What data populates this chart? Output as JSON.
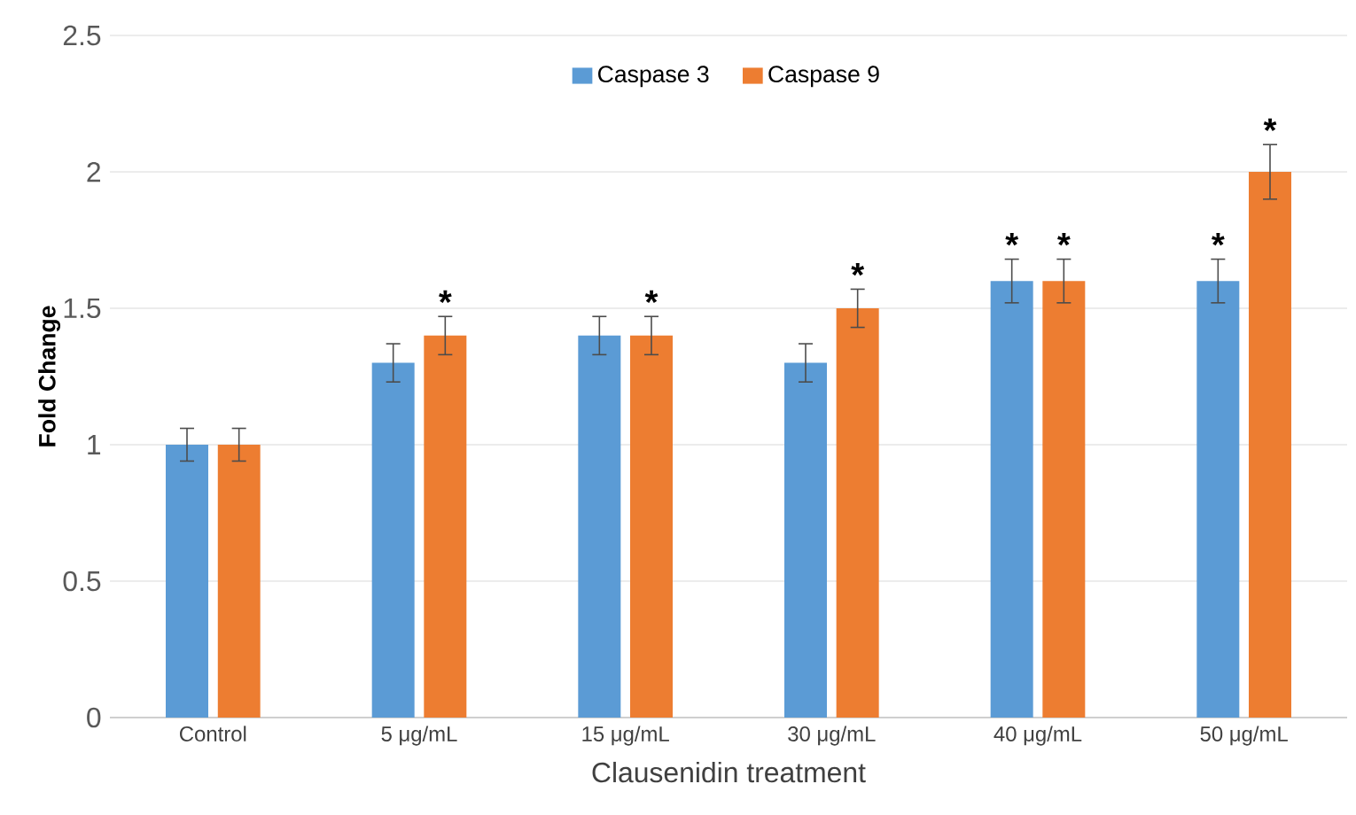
{
  "chart_data": {
    "type": "bar",
    "xlabel": "Clausenidin treatment",
    "ylabel": "Fold Change",
    "categories": [
      "Control",
      "5 μg/mL",
      "15 μg/mL",
      "30 μg/mL",
      "40 μg/mL",
      "50 μg/mL"
    ],
    "series": [
      {
        "name": "Caspase 3",
        "color": "#5b9bd5",
        "values": [
          1.0,
          1.3,
          1.4,
          1.3,
          1.6,
          1.6
        ],
        "errors": [
          0.06,
          0.07,
          0.07,
          0.07,
          0.08,
          0.08
        ]
      },
      {
        "name": "Caspase 9",
        "color": "#ed7d31",
        "values": [
          1.0,
          1.4,
          1.4,
          1.5,
          1.6,
          2.0
        ],
        "errors": [
          0.06,
          0.07,
          0.07,
          0.07,
          0.08,
          0.1
        ]
      }
    ],
    "ylim": [
      0,
      2.5
    ],
    "yticks": [
      0,
      0.5,
      1,
      1.5,
      2,
      2.5
    ],
    "grid": "y",
    "legend": "top",
    "annotations": [
      {
        "text": "*",
        "x": "5 μg/mL",
        "y": 1.4
      },
      {
        "text": "*",
        "x": "15 μg/mL",
        "y": 1.4
      },
      {
        "text": "*",
        "x": "30 μg/mL",
        "y": 1.5
      },
      {
        "text": "*",
        "x": "40 μg/mL",
        "y": 1.6
      },
      {
        "text": "*",
        "x": "40 μg/mL",
        "y": 1.6
      },
      {
        "text": "*",
        "x": "50 μg/mL",
        "y": 1.6
      },
      {
        "text": "*",
        "x": "50 μg/mL",
        "y": 2.0
      }
    ]
  }
}
